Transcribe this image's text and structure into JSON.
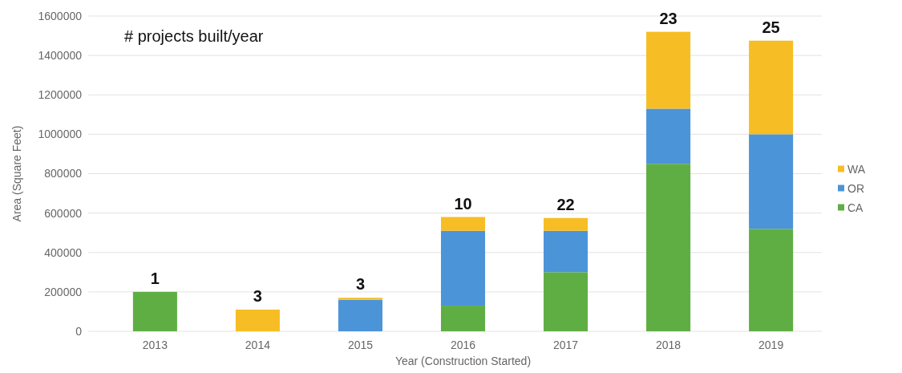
{
  "chart_data": {
    "type": "bar",
    "stacked": true,
    "xlabel": "Year (Construction Started)",
    "ylabel": "Area (Square Feet)",
    "categories": [
      "2013",
      "2014",
      "2015",
      "2016",
      "2017",
      "2018",
      "2019"
    ],
    "series": [
      {
        "name": "CA",
        "color": "#5fae44",
        "values": [
          200000,
          0,
          0,
          130000,
          300000,
          850000,
          520000
        ]
      },
      {
        "name": "OR",
        "color": "#4c94d8",
        "values": [
          0,
          0,
          160000,
          380000,
          210000,
          280000,
          480000
        ]
      },
      {
        "name": "WA",
        "color": "#f6be24",
        "values": [
          0,
          110000,
          10000,
          70000,
          65000,
          390000,
          475000
        ]
      }
    ],
    "ylim": [
      0,
      1600000
    ],
    "yticks": [
      0,
      200000,
      400000,
      600000,
      800000,
      1000000,
      1200000,
      1400000,
      1600000
    ],
    "grid": "y",
    "legend": "right",
    "annotations": [
      "# projects built/year",
      {
        "text": "1",
        "x": "2013",
        "y": 200000
      },
      {
        "text": "3",
        "x": "2014",
        "y": 110000
      },
      {
        "text": "3",
        "x": "2015",
        "y": 170000
      },
      {
        "text": "10",
        "x": "2016",
        "y": 580000
      },
      {
        "text": "22",
        "x": "2017",
        "y": 575000
      },
      {
        "text": "23",
        "x": "2018",
        "y": 1520000
      },
      {
        "text": "25",
        "x": "2019",
        "y": 1475000
      }
    ]
  }
}
